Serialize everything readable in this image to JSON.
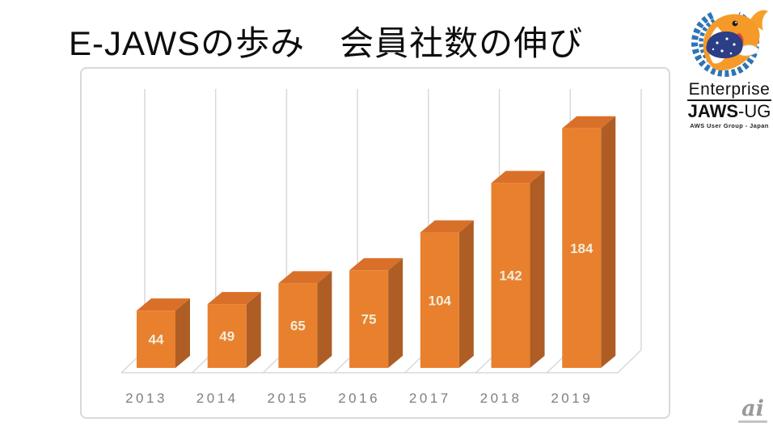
{
  "title": "E-JAWSの歩み　会員社数の伸び",
  "logo": {
    "line1": "Enterprise",
    "line2_bold": "JAWS",
    "line2_rest": "-UG",
    "line3": "AWS User Group - Japan"
  },
  "watermark": {
    "text": "ai"
  },
  "chart_data": {
    "type": "bar",
    "style": "3d-column",
    "title": "",
    "categories": [
      "2013",
      "2014",
      "2015",
      "2016",
      "2017",
      "2018",
      "2019"
    ],
    "values": [
      44,
      49,
      65,
      75,
      104,
      142,
      184
    ],
    "data_labels": [
      44,
      49,
      65,
      75,
      104,
      142,
      184
    ],
    "xlabel": "",
    "ylabel": "",
    "ylim": [
      0,
      200
    ],
    "y_axis_visible": false,
    "legend": "none",
    "grid": "vertical category separators only",
    "colors": {
      "bar_front": "#E8802E",
      "bar_top": "#D9702A",
      "bar_side": "#AE5D24",
      "data_label": "#F3EDDA",
      "axis_label": "#7F7F7F",
      "gridline": "#D9D9D9",
      "frame": "#D9D9D9"
    }
  }
}
